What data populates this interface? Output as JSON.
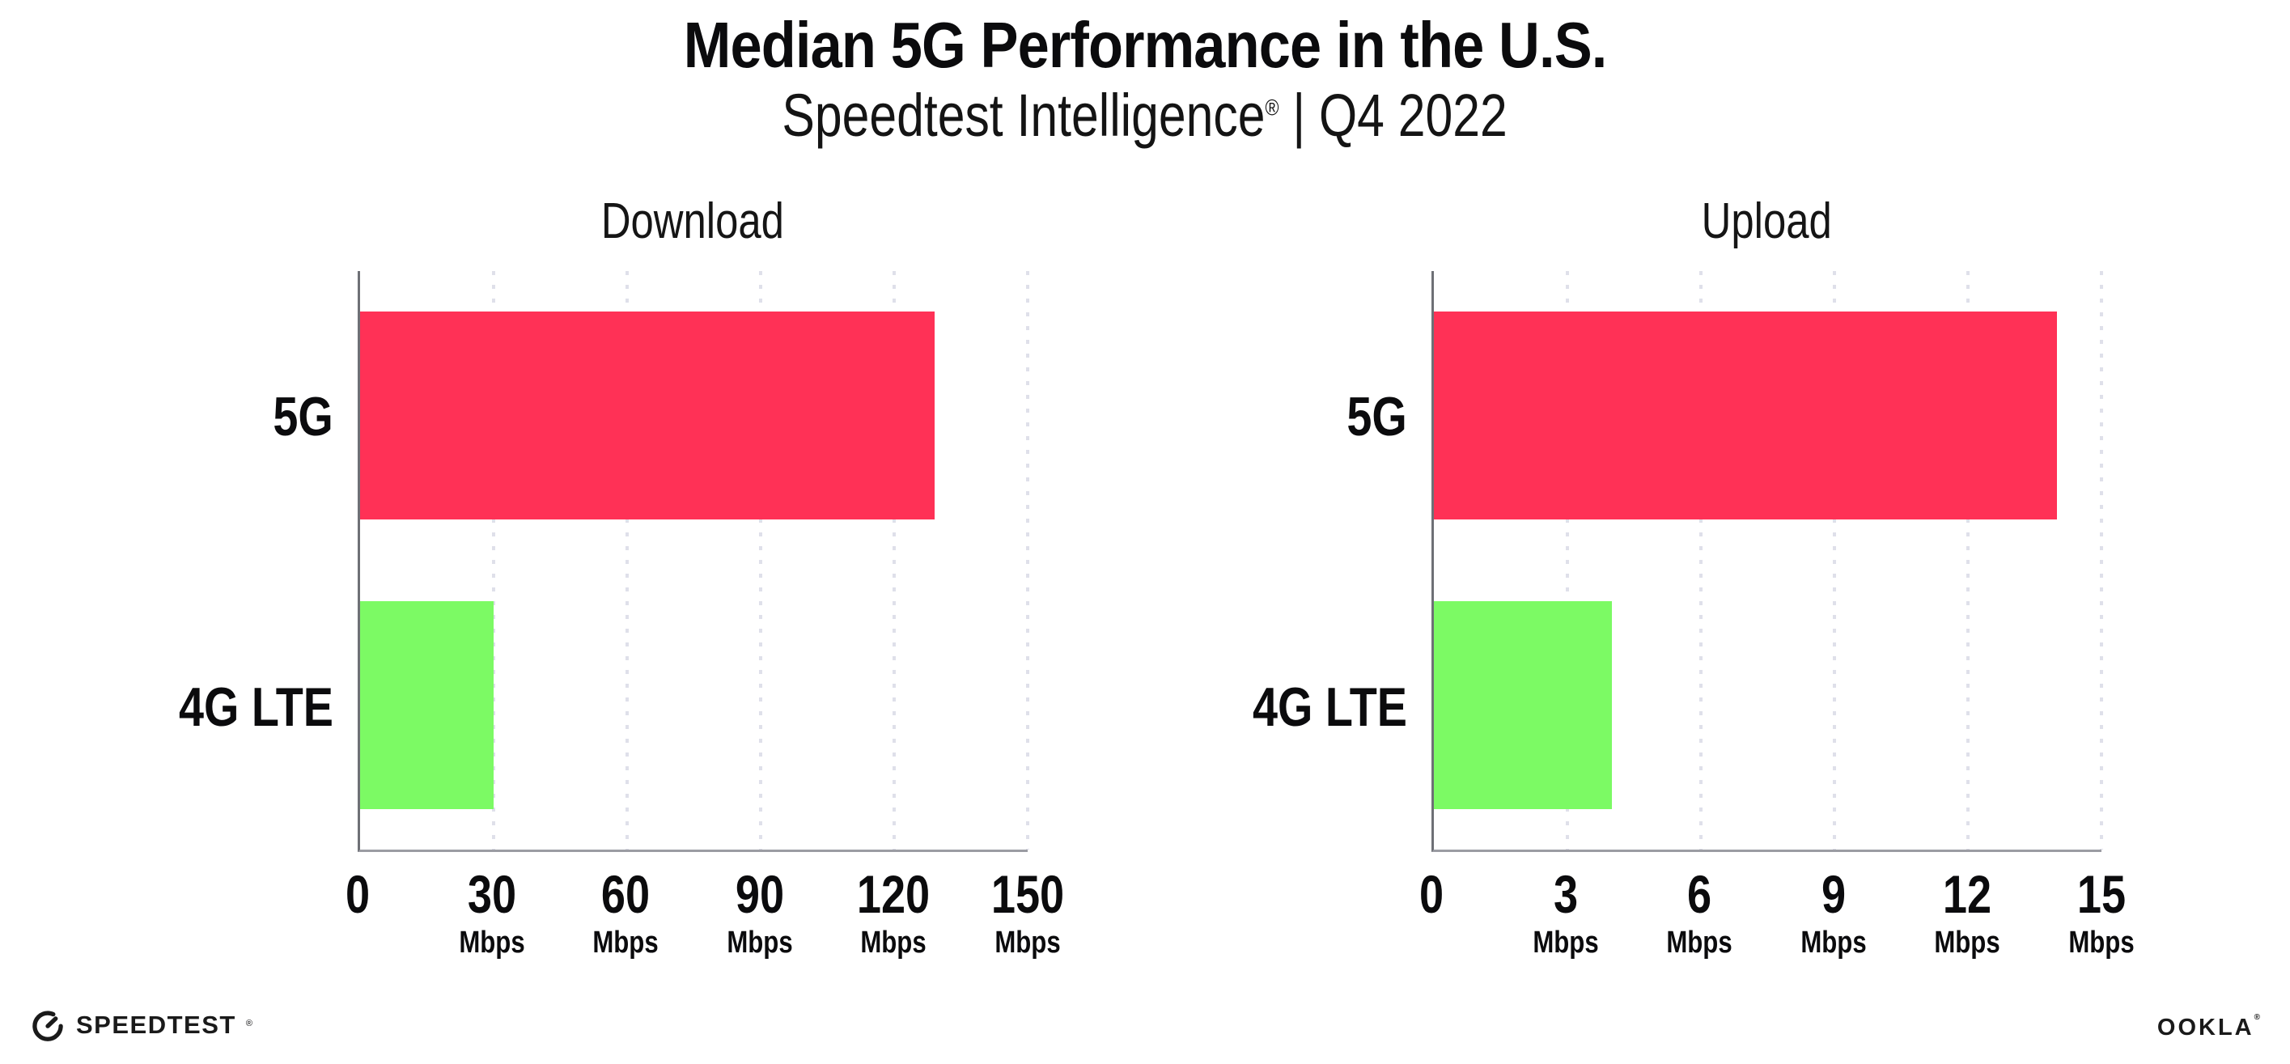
{
  "header": {
    "title": "Median 5G Performance in the U.S.",
    "subtitle_brand": "Speedtest Intelligence",
    "subtitle_reg": "®",
    "subtitle_rest": " | Q4 2022"
  },
  "chart_data": [
    {
      "type": "bar",
      "orientation": "horizontal",
      "title": "Download",
      "categories": [
        "5G",
        "4G LTE"
      ],
      "values": [
        129,
        30
      ],
      "unit": "Mbps",
      "xlim": [
        0,
        150
      ],
      "tick_step": 30,
      "grid": "dotted-vertical",
      "legend": "none",
      "bar_colors": [
        "#FF3156",
        "#7CFA64"
      ],
      "ticks": [
        {
          "v": "0",
          "unit": ""
        },
        {
          "v": "30",
          "unit": "Mbps"
        },
        {
          "v": "60",
          "unit": "Mbps"
        },
        {
          "v": "90",
          "unit": "Mbps"
        },
        {
          "v": "120",
          "unit": "Mbps"
        },
        {
          "v": "150",
          "unit": "Mbps"
        }
      ]
    },
    {
      "type": "bar",
      "orientation": "horizontal",
      "title": "Upload",
      "categories": [
        "5G",
        "4G LTE"
      ],
      "values": [
        14,
        4
      ],
      "unit": "Mbps",
      "xlim": [
        0,
        15
      ],
      "tick_step": 3,
      "grid": "dotted-vertical",
      "legend": "none",
      "bar_colors": [
        "#FF3156",
        "#7CFA64"
      ],
      "ticks": [
        {
          "v": "0",
          "unit": ""
        },
        {
          "v": "3",
          "unit": "Mbps"
        },
        {
          "v": "6",
          "unit": "Mbps"
        },
        {
          "v": "9",
          "unit": "Mbps"
        },
        {
          "v": "12",
          "unit": "Mbps"
        },
        {
          "v": "15",
          "unit": "Mbps"
        }
      ]
    }
  ],
  "colors": {
    "bar_5g": "#FF3156",
    "bar_4g_lte": "#7CFA64",
    "x_axis": "#9B9CA3",
    "y_axis": "#6E7076",
    "gridline": "#DFE0EA",
    "text": "#0B0B0D"
  },
  "footer": {
    "speedtest_label": "SPEEDTEST",
    "speedtest_reg": "®",
    "ookla_label": "OOKLA",
    "ookla_reg": "®",
    "speedtest_icon": "gauge-icon"
  }
}
